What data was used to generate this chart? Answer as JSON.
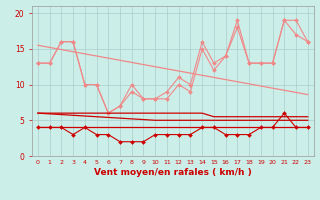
{
  "title": "Vent moyen/en rafales ( km/h )",
  "background_color": "#cceee8",
  "grid_color": "#aacccc",
  "x_values": [
    0,
    1,
    2,
    3,
    4,
    5,
    6,
    7,
    8,
    9,
    10,
    11,
    12,
    13,
    14,
    15,
    16,
    17,
    18,
    19,
    20,
    21,
    22,
    23
  ],
  "line_upper1": [
    13,
    13,
    16,
    16,
    10,
    10,
    6,
    7,
    10,
    8,
    8,
    9,
    11,
    10,
    16,
    13,
    14,
    19,
    13,
    13,
    13,
    19,
    19,
    16
  ],
  "line_upper2": [
    13,
    13,
    16,
    16,
    10,
    10,
    6,
    7,
    9,
    8,
    8,
    8,
    10,
    9,
    15,
    12,
    14,
    18,
    13,
    13,
    13,
    19,
    17,
    16
  ],
  "line_upper_trend": [
    15.5,
    15.2,
    14.9,
    14.6,
    14.3,
    14.0,
    13.7,
    13.4,
    13.1,
    12.8,
    12.5,
    12.2,
    11.9,
    11.6,
    11.3,
    11.0,
    10.7,
    10.4,
    10.1,
    9.8,
    9.5,
    9.2,
    8.9,
    8.6
  ],
  "line_lower1": [
    4,
    4,
    4,
    3,
    4,
    3,
    3,
    2,
    2,
    2,
    3,
    3,
    3,
    3,
    4,
    4,
    3,
    3,
    3,
    4,
    4,
    6,
    4,
    4
  ],
  "line_lower_flat1": [
    6,
    6,
    6,
    6,
    6,
    6,
    6,
    6,
    6,
    6,
    6,
    6,
    6,
    6,
    6,
    5.5,
    5.5,
    5.5,
    5.5,
    5.5,
    5.5,
    5.5,
    5.5,
    5.5
  ],
  "line_lower_flat2": [
    4,
    4,
    4,
    4,
    4,
    4,
    4,
    4,
    4,
    4,
    4,
    4,
    4,
    4,
    4,
    4,
    4,
    4,
    4,
    4,
    4,
    4,
    4,
    4
  ],
  "line_lower_trend": [
    6.0,
    5.9,
    5.8,
    5.7,
    5.6,
    5.5,
    5.4,
    5.3,
    5.2,
    5.1,
    5.0,
    5.0,
    5.0,
    5.0,
    5.0,
    5.0,
    5.0,
    5.0,
    5.0,
    5.0,
    5.0,
    5.0,
    5.0,
    5.0
  ],
  "color_light": "#f08888",
  "color_dark": "#cc0000",
  "ylim": [
    0,
    21
  ],
  "yticks": [
    0,
    5,
    10,
    15,
    20
  ],
  "figsize": [
    3.2,
    2.0
  ],
  "dpi": 100
}
